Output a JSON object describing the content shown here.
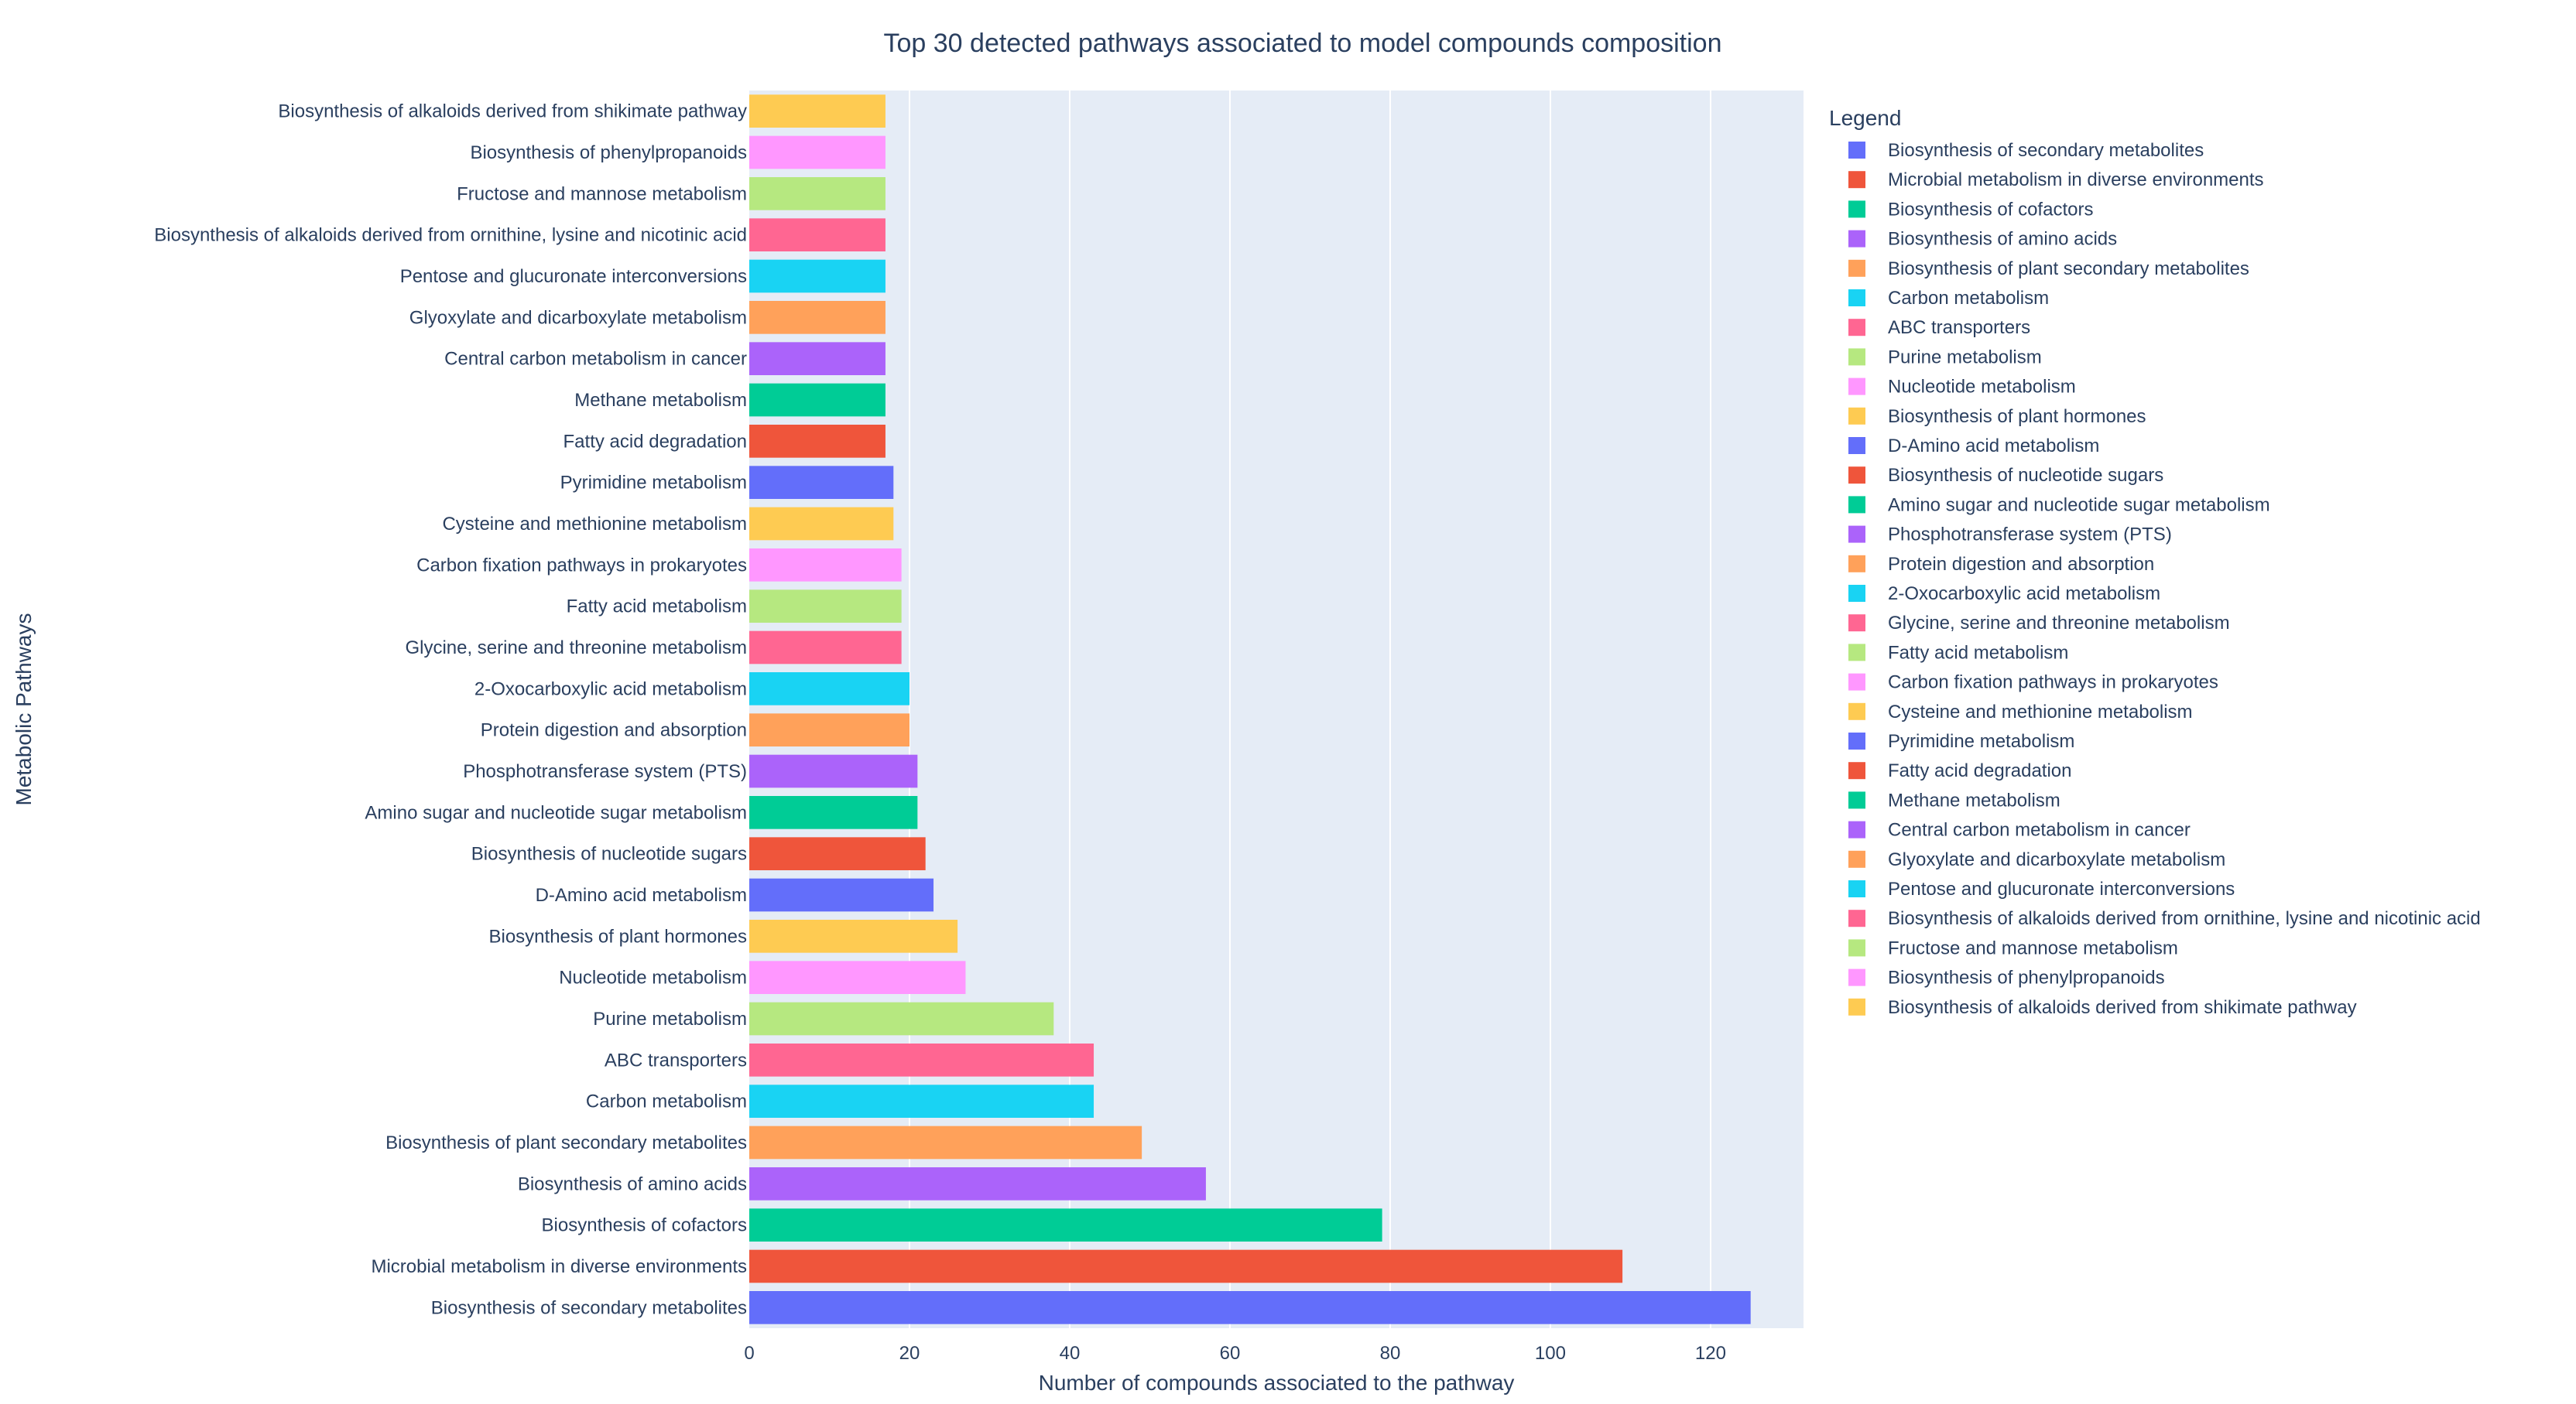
{
  "chart_data": {
    "type": "bar",
    "orientation": "horizontal",
    "title": "Top 30 detected pathways associated to model compounds composition",
    "xlabel": "Number of compounds associated to the pathway",
    "ylabel": "Metabolic Pathways",
    "xlim": [
      0,
      131.6
    ],
    "x_ticks": [
      0,
      20,
      40,
      60,
      80,
      100,
      120
    ],
    "grid": "vertical",
    "legend_title": "Legend",
    "legend_placement": "right",
    "plot_background": "#e5ecf6",
    "categories": [
      "Biosynthesis of secondary metabolites",
      "Microbial metabolism in diverse environments",
      "Biosynthesis of cofactors",
      "Biosynthesis of amino acids",
      "Biosynthesis of plant secondary metabolites",
      "Carbon metabolism",
      "ABC transporters",
      "Purine metabolism",
      "Nucleotide metabolism",
      "Biosynthesis of plant hormones",
      "D-Amino acid metabolism",
      "Biosynthesis of nucleotide sugars",
      "Amino sugar and nucleotide sugar metabolism",
      "Phosphotransferase system (PTS)",
      "Protein digestion and absorption",
      "2-Oxocarboxylic acid metabolism",
      "Glycine, serine and threonine metabolism",
      "Fatty acid metabolism",
      "Carbon fixation pathways in prokaryotes",
      "Cysteine and methionine metabolism",
      "Pyrimidine metabolism",
      "Fatty acid degradation",
      "Methane metabolism",
      "Central carbon metabolism in cancer",
      "Glyoxylate and dicarboxylate metabolism",
      "Pentose and glucuronate interconversions",
      "Biosynthesis of alkaloids derived from ornithine, lysine and nicotinic acid",
      "Fructose and mannose metabolism",
      "Biosynthesis of phenylpropanoids",
      "Biosynthesis of alkaloids derived from shikimate pathway"
    ],
    "values": [
      125,
      109,
      79,
      57,
      49,
      43,
      43,
      38,
      27,
      26,
      23,
      22,
      21,
      21,
      20,
      20,
      19,
      19,
      19,
      18,
      18,
      17,
      17,
      17,
      17,
      17,
      17,
      17,
      17,
      17
    ],
    "colors": [
      "#636efa",
      "#EF553B",
      "#00cc96",
      "#ab63fa",
      "#FFA15A",
      "#19d3f3",
      "#FF6692",
      "#B6E880",
      "#FF97FF",
      "#FECB52"
    ]
  }
}
